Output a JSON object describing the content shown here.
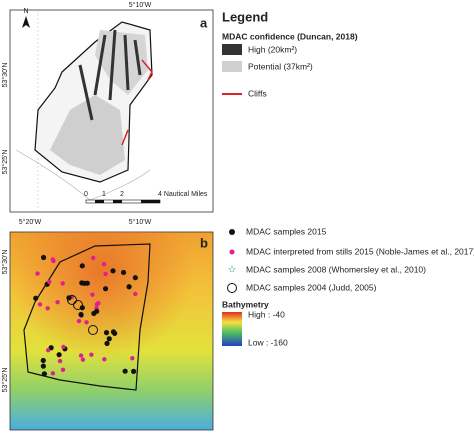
{
  "panel_a": {
    "label": "a",
    "north": "N",
    "top_lon": "5°10'W",
    "lat_labels": [
      "53°30'N",
      "53°25'N"
    ],
    "lon_labels": [
      "5°20'W",
      "5°10'W"
    ],
    "scale": [
      "0",
      "1",
      "2",
      "4 Nautical Miles"
    ]
  },
  "legend": {
    "title": "Legend",
    "confidence_title": "MDAC confidence (Duncan, 2018)",
    "high": "High (20km²)",
    "potential": "Potential (37km²)",
    "cliffs": "Cliffs"
  },
  "panel_b": {
    "label": "b",
    "lat_labels": [
      "53°30'N",
      "53°25'N"
    ],
    "legend": [
      "MDAC samples 2015",
      "MDAC interpreted from stills 2015 (Noble-James et al., 2017)",
      "MDAC samples 2008 (Whomersley et al., 2010)",
      "MDAC samples 2004 (Judd, 2005)"
    ],
    "bathymetry": {
      "title": "Bathymetry",
      "high": "High : -40",
      "low": "Low : -160"
    }
  }
}
